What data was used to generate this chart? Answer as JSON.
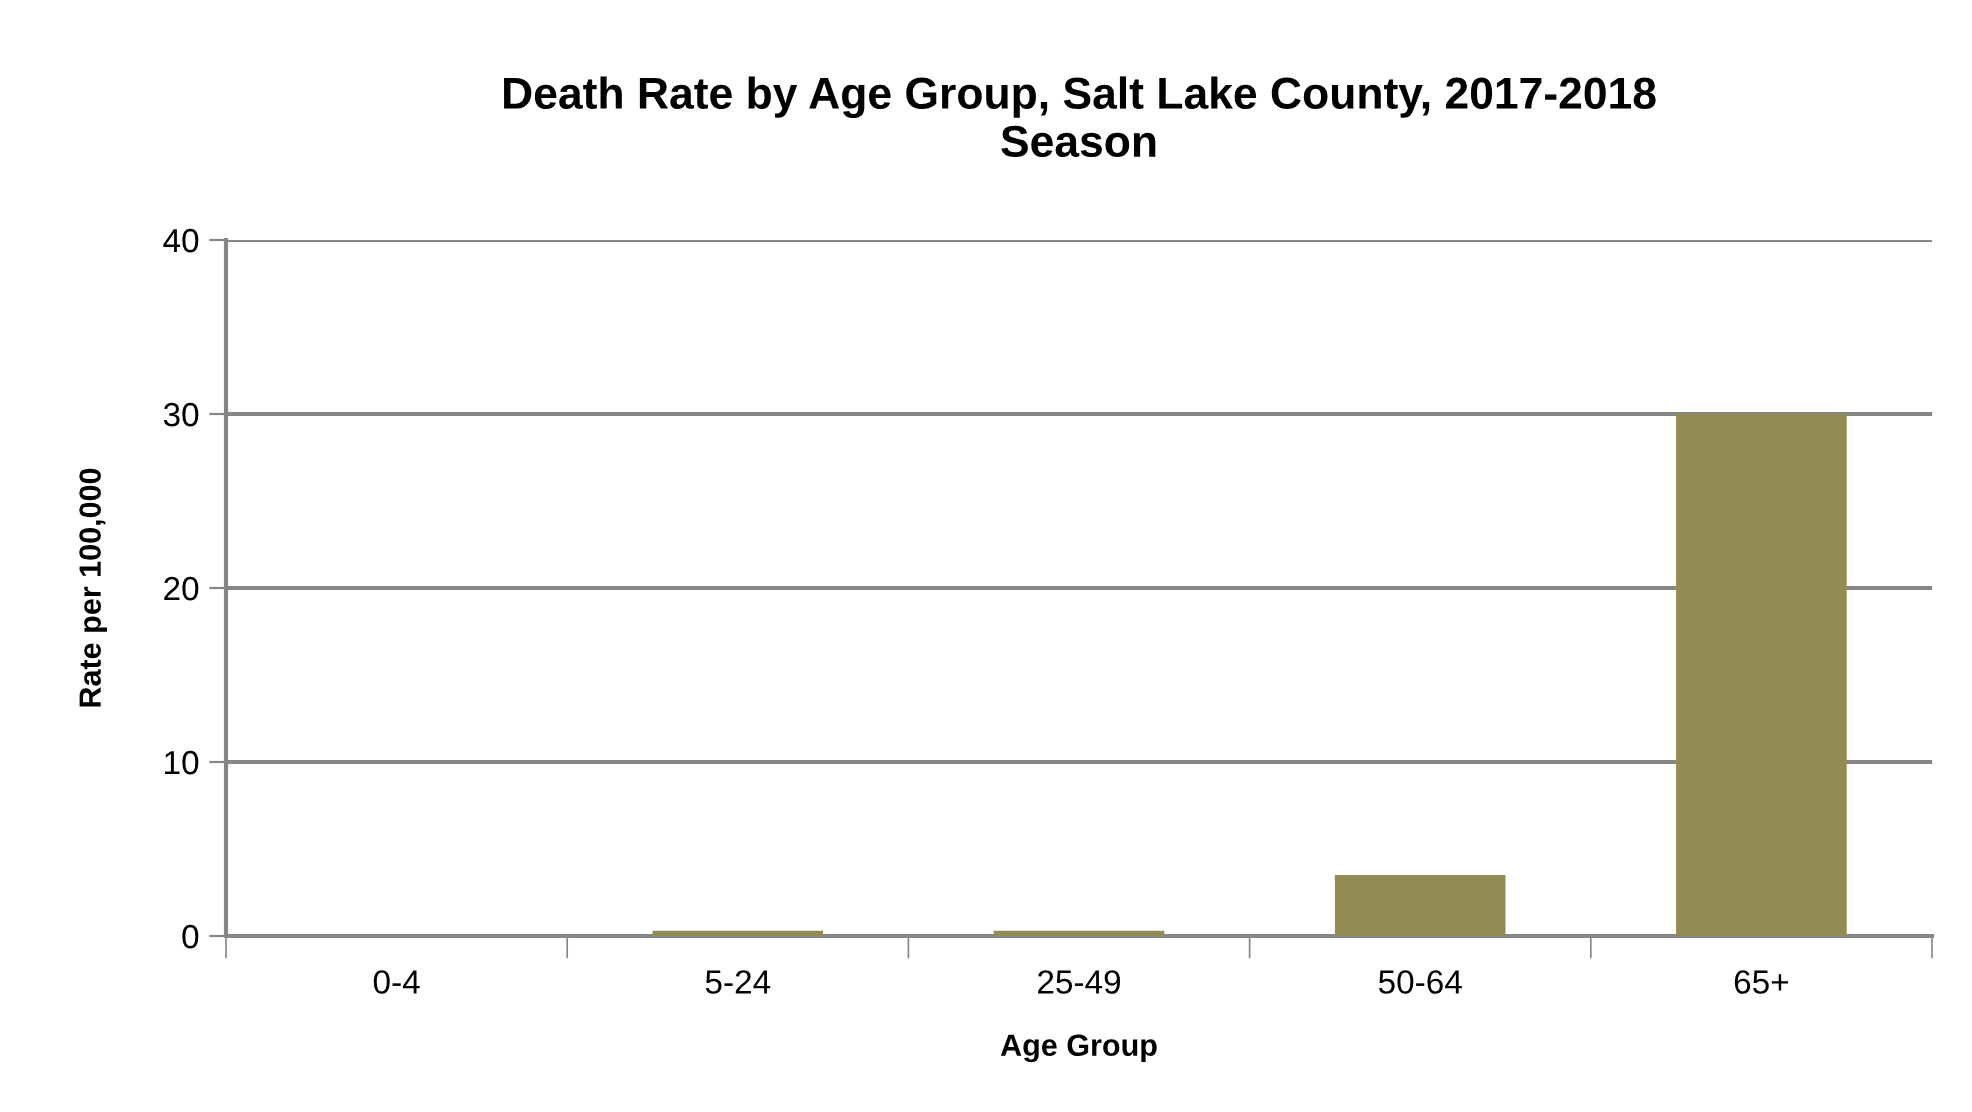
{
  "chart_data": {
    "type": "bar",
    "title": "Death Rate by Age Group, Salt Lake County, 2017-2018\nSeason",
    "xlabel": "Age Group",
    "ylabel": "Rate per 100,000",
    "categories": [
      "0-4",
      "5-24",
      "25-49",
      "50-64",
      "65+"
    ],
    "values": [
      0,
      0.3,
      0.3,
      3.5,
      30
    ],
    "color": "#948b54",
    "ylim": [
      0,
      40
    ],
    "yticks": [
      0,
      10,
      20,
      30,
      40
    ],
    "grid": "y"
  }
}
